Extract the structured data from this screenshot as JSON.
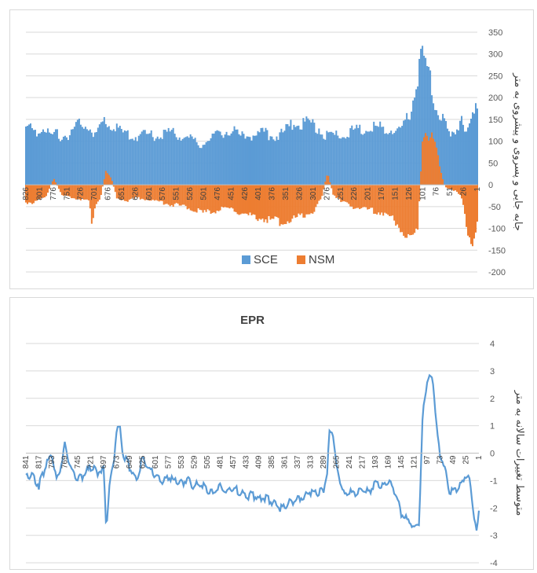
{
  "chart_data": [
    {
      "type": "bar",
      "title": "",
      "ylabel": "جابه جایی و پسروی و پیشروی به متر",
      "ylim": [
        -200,
        350
      ],
      "yticks": [
        350,
        300,
        250,
        200,
        150,
        100,
        50,
        0,
        -50,
        -100,
        -150,
        -200
      ],
      "x_reversed": true,
      "x_range": [
        1,
        826
      ],
      "xtick_labels": [
        "1",
        "26",
        "51",
        "76",
        "101",
        "126",
        "151",
        "176",
        "201",
        "226",
        "251",
        "276",
        "301",
        "326",
        "351",
        "376",
        "401",
        "426",
        "451",
        "476",
        "501",
        "526",
        "551",
        "576",
        "601",
        "626",
        "651",
        "676",
        "701",
        "726",
        "751",
        "776",
        "801",
        "826"
      ],
      "legend": [
        "SCE",
        "NSM"
      ],
      "legend_position": "bottom",
      "grid": true,
      "series": [
        {
          "name": "SCE",
          "color": "#5b9bd5",
          "points": [
            [
              1,
              175
            ],
            [
              10,
              155
            ],
            [
              20,
              115
            ],
            [
              30,
              160
            ],
            [
              40,
              120
            ],
            [
              50,
              105
            ],
            [
              60,
              140
            ],
            [
              75,
              180
            ],
            [
              85,
              225
            ],
            [
              95,
              275
            ],
            [
              101,
              300
            ],
            [
              110,
              240
            ],
            [
              125,
              160
            ],
            [
              140,
              130
            ],
            [
              155,
              125
            ],
            [
              170,
              130
            ],
            [
              190,
              135
            ],
            [
              210,
              130
            ],
            [
              230,
              125
            ],
            [
              250,
              115
            ],
            [
              275,
              110
            ],
            [
              290,
              130
            ],
            [
              310,
              140
            ],
            [
              330,
              145
            ],
            [
              350,
              125
            ],
            [
              370,
              110
            ],
            [
              390,
              120
            ],
            [
              410,
              115
            ],
            [
              430,
              110
            ],
            [
              450,
              125
            ],
            [
              470,
              120
            ],
            [
              490,
              105
            ],
            [
              510,
              90
            ],
            [
              530,
              110
            ],
            [
              550,
              115
            ],
            [
              570,
              120
            ],
            [
              590,
              110
            ],
            [
              610,
              115
            ],
            [
              630,
              110
            ],
            [
              650,
              120
            ],
            [
              670,
              135
            ],
            [
              680,
              150
            ],
            [
              690,
              130
            ],
            [
              700,
              115
            ],
            [
              710,
              130
            ],
            [
              720,
              140
            ],
            [
              730,
              135
            ],
            [
              740,
              125
            ],
            [
              750,
              115
            ],
            [
              760,
              110
            ],
            [
              770,
              120
            ],
            [
              780,
              110
            ],
            [
              790,
              130
            ],
            [
              800,
              130
            ],
            [
              810,
              120
            ],
            [
              820,
              130
            ],
            [
              826,
              130
            ]
          ]
        },
        {
          "name": "NSM",
          "color": "#ed7d31",
          "points": [
            [
              1,
              -90
            ],
            [
              10,
              -130
            ],
            [
              20,
              -100
            ],
            [
              30,
              -30
            ],
            [
              40,
              -15
            ],
            [
              50,
              -10
            ],
            [
              60,
              -5
            ],
            [
              70,
              40
            ],
            [
              75,
              80
            ],
            [
              85,
              110
            ],
            [
              95,
              120
            ],
            [
              101,
              110
            ],
            [
              110,
              -110
            ],
            [
              125,
              -120
            ],
            [
              140,
              -100
            ],
            [
              155,
              -80
            ],
            [
              170,
              -65
            ],
            [
              190,
              -60
            ],
            [
              210,
              -55
            ],
            [
              230,
              -50
            ],
            [
              250,
              -40
            ],
            [
              265,
              -20
            ],
            [
              275,
              30
            ],
            [
              285,
              -30
            ],
            [
              300,
              -60
            ],
            [
              320,
              -70
            ],
            [
              340,
              -80
            ],
            [
              360,
              -85
            ],
            [
              380,
              -80
            ],
            [
              400,
              -75
            ],
            [
              420,
              -70
            ],
            [
              440,
              -60
            ],
            [
              460,
              -55
            ],
            [
              480,
              -60
            ],
            [
              500,
              -65
            ],
            [
              520,
              -55
            ],
            [
              540,
              -50
            ],
            [
              560,
              -45
            ],
            [
              580,
              -40
            ],
            [
              600,
              -35
            ],
            [
              620,
              -30
            ],
            [
              640,
              -35
            ],
            [
              660,
              -30
            ],
            [
              670,
              15
            ],
            [
              680,
              30
            ],
            [
              690,
              -30
            ],
            [
              700,
              -50
            ],
            [
              705,
              -110
            ],
            [
              710,
              -40
            ],
            [
              720,
              -35
            ],
            [
              740,
              -30
            ],
            [
              760,
              -25
            ],
            [
              775,
              15
            ],
            [
              790,
              -30
            ],
            [
              800,
              -35
            ],
            [
              810,
              -40
            ],
            [
              826,
              -40
            ]
          ]
        }
      ]
    },
    {
      "type": "line",
      "title": "EPR",
      "ylabel": "متوسط تغییرات سالانه به متر",
      "ylim": [
        -4,
        4
      ],
      "yticks": [
        4,
        3,
        2,
        1,
        0,
        -1,
        -2,
        -3,
        -4
      ],
      "x_reversed": true,
      "x_range": [
        1,
        841
      ],
      "xtick_labels": [
        "1",
        "25",
        "49",
        "73",
        "97",
        "121",
        "145",
        "169",
        "193",
        "217",
        "241",
        "265",
        "289",
        "313",
        "337",
        "361",
        "385",
        "409",
        "433",
        "457",
        "481",
        "505",
        "529",
        "553",
        "577",
        "601",
        "625",
        "649",
        "673",
        "697",
        "721",
        "745",
        "769",
        "793",
        "817",
        "841"
      ],
      "grid": true,
      "series": [
        {
          "name": "",
          "color": "#5b9bd5",
          "points": [
            [
              1,
              -2.1
            ],
            [
              5,
              -2.9
            ],
            [
              12,
              -2.0
            ],
            [
              18,
              -1.0
            ],
            [
              25,
              -0.8
            ],
            [
              35,
              -1.2
            ],
            [
              45,
              -1.3
            ],
            [
              55,
              -1.5
            ],
            [
              65,
              -0.5
            ],
            [
              73,
              0.0
            ],
            [
              80,
              1.0
            ],
            [
              85,
              2.5
            ],
            [
              92,
              2.8
            ],
            [
              97,
              2.7
            ],
            [
              105,
              1.5
            ],
            [
              112,
              -2.5
            ],
            [
              121,
              -2.8
            ],
            [
              130,
              -2.5
            ],
            [
              145,
              -2.2
            ],
            [
              155,
              -1.5
            ],
            [
              169,
              -1.0
            ],
            [
              180,
              -1.2
            ],
            [
              193,
              -1.1
            ],
            [
              205,
              -1.4
            ],
            [
              217,
              -1.3
            ],
            [
              230,
              -1.5
            ],
            [
              241,
              -1.4
            ],
            [
              250,
              -1.6
            ],
            [
              258,
              -1.0
            ],
            [
              265,
              -0.5
            ],
            [
              272,
              0.8
            ],
            [
              278,
              0.7
            ],
            [
              283,
              -0.8
            ],
            [
              289,
              -1.3
            ],
            [
              300,
              -1.5
            ],
            [
              313,
              -1.4
            ],
            [
              325,
              -1.6
            ],
            [
              337,
              -1.7
            ],
            [
              350,
              -1.8
            ],
            [
              361,
              -1.9
            ],
            [
              370,
              -2.0
            ],
            [
              385,
              -1.8
            ],
            [
              397,
              -1.6
            ],
            [
              409,
              -1.7
            ],
            [
              421,
              -1.5
            ],
            [
              433,
              -1.6
            ],
            [
              445,
              -1.4
            ],
            [
              457,
              -1.3
            ],
            [
              469,
              -1.4
            ],
            [
              481,
              -1.2
            ],
            [
              493,
              -1.5
            ],
            [
              505,
              -1.3
            ],
            [
              517,
              -1.1
            ],
            [
              529,
              -1.2
            ],
            [
              541,
              -1.0
            ],
            [
              553,
              -1.1
            ],
            [
              565,
              -1.0
            ],
            [
              577,
              -0.9
            ],
            [
              589,
              -1.0
            ],
            [
              601,
              -0.8
            ],
            [
              613,
              -0.6
            ],
            [
              625,
              -0.2
            ],
            [
              637,
              -1.0
            ],
            [
              649,
              -0.5
            ],
            [
              661,
              0.0
            ],
            [
              667,
              0.9
            ],
            [
              673,
              0.9
            ],
            [
              679,
              -0.5
            ],
            [
              685,
              -1.0
            ],
            [
              692,
              -2.7
            ],
            [
              697,
              -0.5
            ],
            [
              709,
              -0.7
            ],
            [
              721,
              -0.5
            ],
            [
              733,
              -0.8
            ],
            [
              745,
              -0.9
            ],
            [
              757,
              -0.6
            ],
            [
              769,
              0.3
            ],
            [
              777,
              -0.5
            ],
            [
              785,
              -1.0
            ],
            [
              793,
              0.0
            ],
            [
              805,
              -0.5
            ],
            [
              817,
              -1.2
            ],
            [
              829,
              -0.8
            ],
            [
              841,
              -0.8
            ]
          ]
        }
      ]
    }
  ]
}
